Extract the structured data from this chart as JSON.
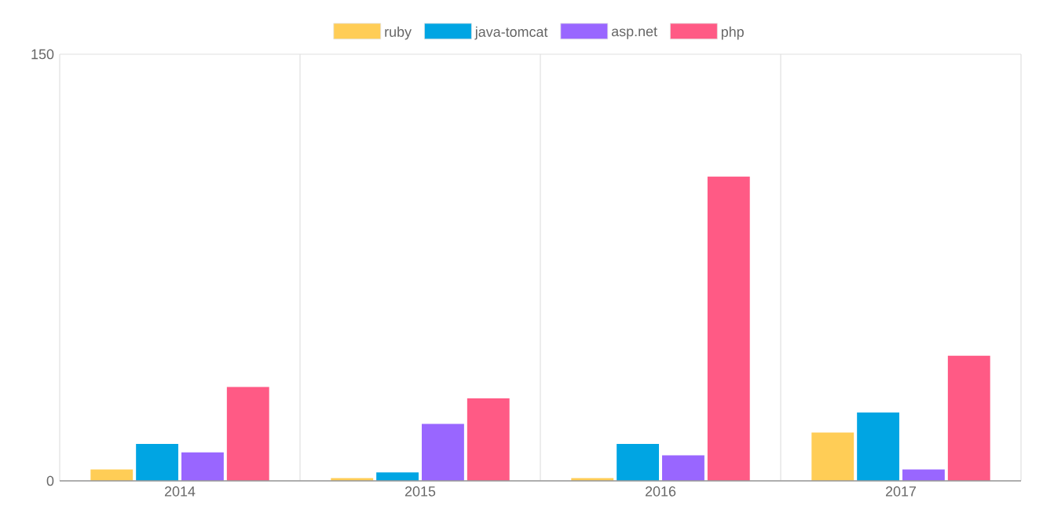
{
  "chart_data": {
    "type": "bar",
    "categories": [
      "2014",
      "2015",
      "2016",
      "2017"
    ],
    "series": [
      {
        "name": "ruby",
        "color": "#ffcd56",
        "values": [
          4,
          1,
          1,
          17
        ]
      },
      {
        "name": "java-tomcat",
        "color": "#00a5e3",
        "values": [
          13,
          3,
          13,
          24
        ]
      },
      {
        "name": "asp.net",
        "color": "#9966ff",
        "values": [
          10,
          20,
          9,
          4
        ]
      },
      {
        "name": "php",
        "color": "#ff5a85",
        "values": [
          33,
          29,
          107,
          44
        ]
      }
    ],
    "ylim": [
      0,
      150
    ],
    "yticks": [
      0,
      150
    ],
    "grid": true,
    "legend": "top"
  }
}
